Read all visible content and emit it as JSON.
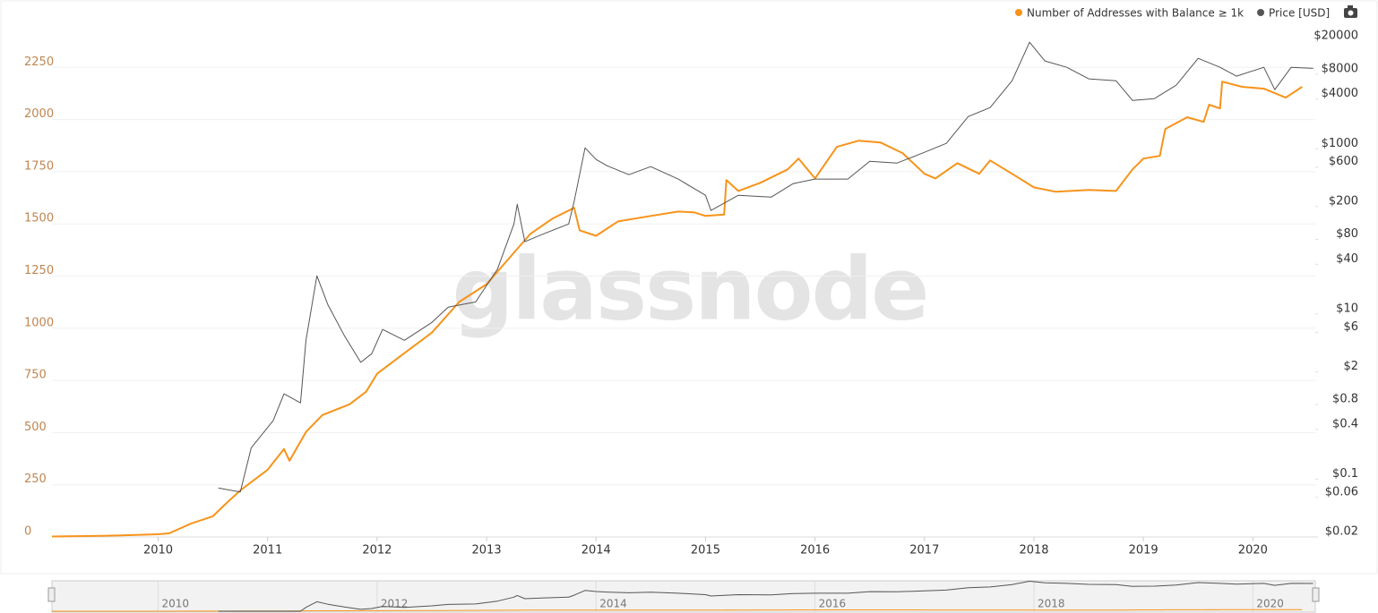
{
  "chart_data": {
    "type": "line",
    "watermark": "glassnode",
    "xlim": [
      2009.03,
      2020.57
    ],
    "xticks": [
      2010,
      2011,
      2012,
      2013,
      2014,
      2015,
      2016,
      2017,
      2018,
      2019,
      2020
    ],
    "ylim": [
      0,
      2500
    ],
    "yticks": [
      0,
      250,
      500,
      750,
      1000,
      1250,
      1500,
      1750,
      2000,
      2250
    ],
    "y2lim": [
      0.02,
      41400
    ],
    "y2scale": "log",
    "y2ticks": [
      {
        "value": 0.02,
        "label": "$0.02"
      },
      {
        "value": 0.06,
        "label": "$0.06"
      },
      {
        "value": 0.1,
        "label": "$0.1"
      },
      {
        "value": 0.4,
        "label": "$0.4"
      },
      {
        "value": 0.8,
        "label": "$0.8"
      },
      {
        "value": 2,
        "label": "$2"
      },
      {
        "value": 6,
        "label": "$6"
      },
      {
        "value": 10,
        "label": "$10"
      },
      {
        "value": 40,
        "label": "$40"
      },
      {
        "value": 80,
        "label": "$80"
      },
      {
        "value": 200,
        "label": "$200"
      },
      {
        "value": 600,
        "label": "$600"
      },
      {
        "value": 1000,
        "label": "$1000"
      },
      {
        "value": 4000,
        "label": "$4000"
      },
      {
        "value": 8000,
        "label": "$8000"
      },
      {
        "value": 20000,
        "label": "$20000"
      }
    ],
    "grid": true,
    "legend": "top-right",
    "series": [
      {
        "name": "Number of Addresses with Balance ≥ 1k",
        "color": "#f7931a",
        "axis": "y",
        "x": [
          2009.03,
          2009.5,
          2010.0,
          2010.1,
          2010.3,
          2010.5,
          2010.6,
          2010.75,
          2011.0,
          2011.15,
          2011.2,
          2011.35,
          2011.5,
          2011.75,
          2011.9,
          2012.0,
          2012.25,
          2012.5,
          2012.75,
          2013.0,
          2013.25,
          2013.4,
          2013.6,
          2013.8,
          2013.85,
          2014.0,
          2014.2,
          2014.5,
          2014.75,
          2014.9,
          2015.0,
          2015.17,
          2015.19,
          2015.3,
          2015.5,
          2015.75,
          2015.85,
          2016.0,
          2016.2,
          2016.4,
          2016.6,
          2016.8,
          2017.0,
          2017.1,
          2017.3,
          2017.5,
          2017.6,
          2017.8,
          2018.0,
          2018.2,
          2018.5,
          2018.75,
          2018.9,
          2019.0,
          2019.15,
          2019.2,
          2019.4,
          2019.55,
          2019.6,
          2019.7,
          2019.72,
          2019.9,
          2020.1,
          2020.3,
          2020.45
        ],
        "values": [
          2,
          5,
          13,
          17,
          64,
          99,
          150,
          223,
          322,
          421,
          365,
          503,
          584,
          636,
          696,
          782,
          881,
          979,
          1126,
          1211,
          1362,
          1452,
          1525,
          1577,
          1469,
          1443,
          1512,
          1538,
          1559,
          1555,
          1538,
          1545,
          1710,
          1658,
          1697,
          1761,
          1813,
          1718,
          1869,
          1899,
          1890,
          1839,
          1740,
          1718,
          1791,
          1740,
          1804,
          1740,
          1675,
          1654,
          1663,
          1658,
          1761,
          1813,
          1826,
          1955,
          2011,
          1989,
          2071,
          2053,
          2182,
          2157,
          2148,
          2105,
          2157
        ]
      },
      {
        "name": "Price [USD]",
        "color": "#555555",
        "axis": "y2",
        "x": [
          2010.55,
          2010.75,
          2010.85,
          2011.05,
          2011.15,
          2011.3,
          2011.35,
          2011.45,
          2011.55,
          2011.7,
          2011.85,
          2011.95,
          2012.05,
          2012.25,
          2012.5,
          2012.65,
          2012.9,
          2013.1,
          2013.25,
          2013.28,
          2013.35,
          2013.5,
          2013.75,
          2013.8,
          2013.9,
          2014.0,
          2014.1,
          2014.3,
          2014.5,
          2014.75,
          2015.0,
          2015.05,
          2015.3,
          2015.6,
          2015.8,
          2016.0,
          2016.3,
          2016.5,
          2016.75,
          2017.0,
          2017.2,
          2017.4,
          2017.6,
          2017.8,
          2017.96,
          2018.1,
          2018.3,
          2018.5,
          2018.75,
          2018.9,
          2019.1,
          2019.3,
          2019.5,
          2019.7,
          2019.85,
          2020.1,
          2020.2,
          2020.35,
          2020.55
        ],
        "values": [
          0.078,
          0.07,
          0.24,
          0.51,
          1.08,
          0.84,
          4.8,
          29,
          13,
          5.5,
          2.6,
          3.3,
          6.5,
          4.8,
          7.9,
          12.1,
          14,
          35,
          123,
          213,
          75,
          91,
          123,
          230,
          1028,
          743,
          624,
          486,
          608,
          430,
          274,
          179,
          274,
          260,
          379,
          430,
          430,
          706,
          672,
          906,
          1164,
          2460,
          3155,
          6670,
          19500,
          11560,
          9700,
          7020,
          6670,
          3850,
          4050,
          5890,
          12450,
          9700,
          7570,
          9700,
          5200,
          9700,
          9400
        ]
      }
    ],
    "navigator": {
      "xticks": [
        2010,
        2012,
        2014,
        2016,
        2018,
        2020
      ]
    }
  }
}
